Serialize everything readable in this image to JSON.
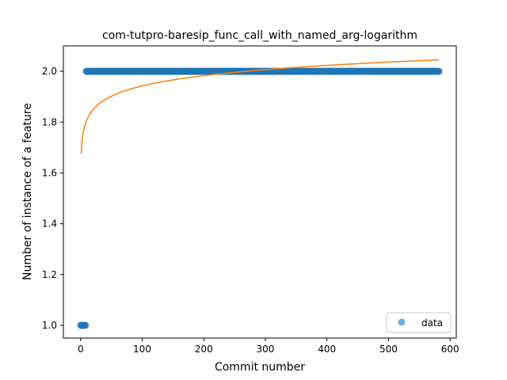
{
  "chart_data": {
    "type": "scatter",
    "title": "com-tutpro-baresip_func_call_with_named_arg-logarithm",
    "xlabel": "Commit number",
    "ylabel": "Number of instance of a feature",
    "xlim": [
      -28,
      610
    ],
    "ylim": [
      0.95,
      2.1
    ],
    "xticks": [
      0,
      100,
      200,
      300,
      400,
      500,
      600
    ],
    "yticks": [
      1.0,
      1.2,
      1.4,
      1.6,
      1.8,
      2.0
    ],
    "xtick_labels": [
      "0",
      "100",
      "200",
      "300",
      "400",
      "500",
      "600"
    ],
    "ytick_labels": [
      "1.0",
      "1.2",
      "1.4",
      "1.6",
      "1.8",
      "2.0"
    ],
    "grid": false,
    "legend_position": "lower-right",
    "series": [
      {
        "name": "data",
        "kind": "scatter",
        "color": "#1f77b4",
        "segments": [
          {
            "x_start": 0,
            "x_end": 8,
            "y": 1.0
          },
          {
            "x_start": 9,
            "x_end": 582,
            "y": 2.0
          }
        ]
      },
      {
        "kind": "line",
        "color": "#ff7f0e",
        "model": "logarithmic",
        "a": 1.674,
        "b": 0.0583,
        "x_start": 1,
        "x_end": 582
      }
    ]
  }
}
